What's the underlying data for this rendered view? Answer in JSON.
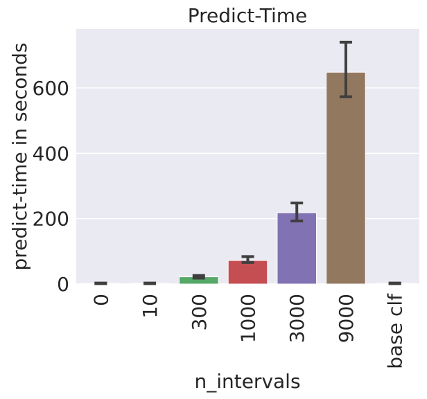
{
  "chart_data": {
    "type": "bar",
    "title": "Predict-Time",
    "xlabel": "n_intervals",
    "ylabel": "predict-time in seconds",
    "categories": [
      "0",
      "10",
      "300",
      "1000",
      "3000",
      "9000",
      "base clf"
    ],
    "values": [
      2,
      2,
      22,
      72,
      218,
      648,
      2
    ],
    "error_low": [
      1,
      1,
      18,
      66,
      193,
      573,
      1
    ],
    "error_high": [
      3,
      3,
      26,
      84,
      248,
      740,
      3
    ],
    "ylim": [
      0,
      780
    ],
    "yticks": [
      0,
      200,
      400,
      600
    ],
    "grid": true,
    "colors": [
      "#4c72b0",
      "#dd8452",
      "#55a868",
      "#c44e52",
      "#8172b3",
      "#937860",
      "#da8bc3"
    ],
    "background": "#eaeaf2",
    "gridColor": "#ffffff",
    "errorColor": "#3f3f3f"
  }
}
